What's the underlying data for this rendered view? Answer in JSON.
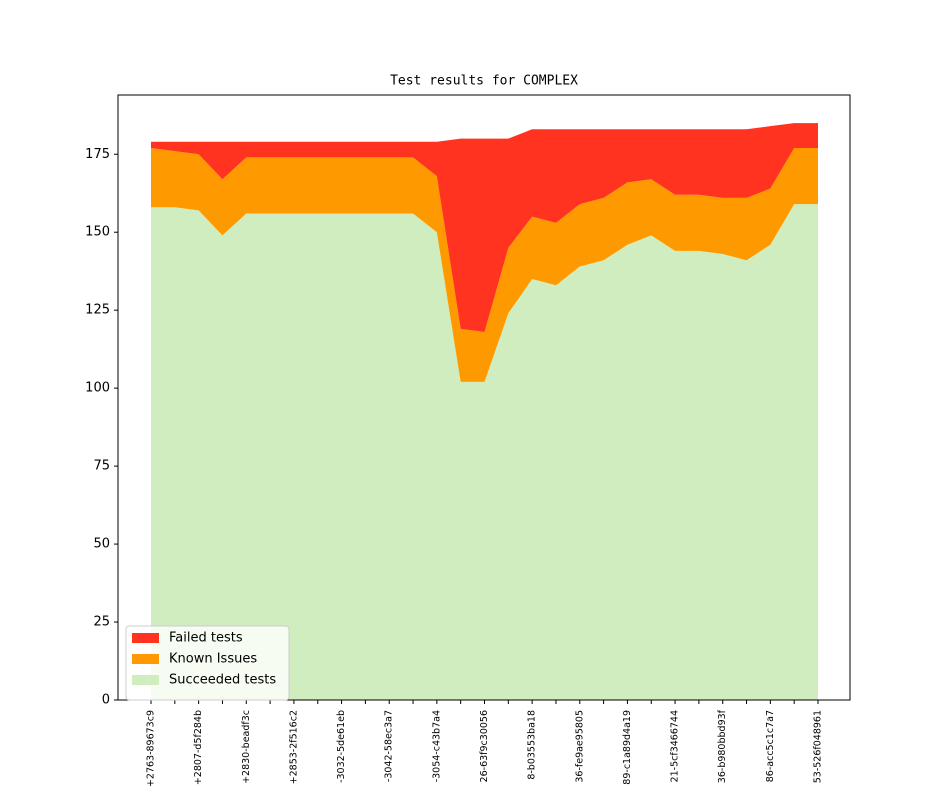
{
  "chart_data": {
    "type": "stacked_area",
    "title": "Test results for COMPLEX",
    "categories": [
      "+2763-89673c9",
      null,
      "+2807-d5f284b",
      null,
      "+2830-beadf3c",
      null,
      "+2853-2f516c2",
      null,
      "-3032-5de61eb",
      null,
      "-3042-58ec3a7",
      null,
      "-3054-c43b7a4",
      null,
      "26-63f9c30056",
      null,
      "8-b03553ba18",
      null,
      "36-fe9ae95805",
      null,
      "89-c1a89d4a19",
      null,
      "21-5cf3466744",
      null,
      "36-b980bbd93f",
      null,
      "86-acc5c1c7a7",
      null,
      "53-526f048961"
    ],
    "series": [
      {
        "name": "Failed tests",
        "color": "#ff331f",
        "values": [
          2,
          3,
          4,
          12,
          5,
          5,
          5,
          5,
          5,
          5,
          5,
          5,
          11,
          61,
          62,
          35,
          28,
          30,
          24,
          22,
          17,
          16,
          21,
          21,
          22,
          22,
          20,
          8,
          8
        ]
      },
      {
        "name": "Known Issues",
        "color": "#ff9900",
        "values": [
          19,
          18,
          18,
          18,
          18,
          18,
          18,
          18,
          18,
          18,
          18,
          18,
          18,
          17,
          16,
          21,
          20,
          20,
          20,
          20,
          20,
          18,
          18,
          18,
          18,
          20,
          18,
          18,
          18
        ]
      },
      {
        "name": "Succeeded tests",
        "color": "#cfedbf",
        "values": [
          158,
          158,
          157,
          149,
          156,
          156,
          156,
          156,
          156,
          156,
          156,
          156,
          150,
          102,
          102,
          124,
          135,
          133,
          139,
          141,
          146,
          149,
          144,
          144,
          143,
          141,
          146,
          159,
          159
        ]
      }
    ],
    "ylim": [
      0,
      194
    ],
    "yticks": [
      0,
      25,
      50,
      75,
      100,
      125,
      150,
      175
    ],
    "legend": "lower left"
  }
}
